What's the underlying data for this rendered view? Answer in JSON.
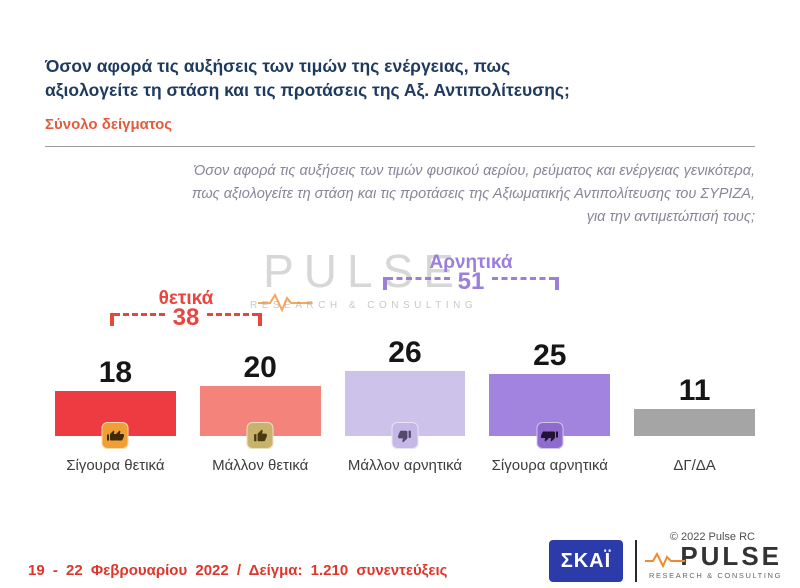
{
  "header": {
    "title_line1": "Όσον αφορά τις αυξήσεις των τιμών της ενέργειας, πως",
    "title_line2": "αξιολογείτε τη στάση και τις προτάσεις της Αξ. Αντιπολίτευσης;",
    "subtitle": "Σύνολο δείγματος"
  },
  "question": {
    "line1": "Όσον αφορά τις αυξήσεις των τιμών φυσικού αερίου, ρεύματος και ενέργειας γενικότερα,",
    "line2": "πως αξιολογείτε τη στάση και τις προτάσεις της Αξιωματικής Αντιπολίτευσης του ΣΥΡΙΖΑ,",
    "line3": "για την αντιμετώπισή τους;"
  },
  "chart_data": {
    "type": "bar",
    "categories": [
      "Σίγουρα θετικά",
      "Μάλλον θετικά",
      "Μάλλον αρνητικά",
      "Σίγουρα αρνητικά",
      "ΔΓ/ΔΑ"
    ],
    "values": [
      18,
      20,
      26,
      25,
      11
    ],
    "bar_colors": [
      "#ee3b41",
      "#f4837b",
      "#cdc2ea",
      "#a283de",
      "#a5a5a5"
    ],
    "icon_badge_colors": [
      "#ef9f33",
      "#c9b26b",
      "#c5b8e6",
      "#8d6cce"
    ],
    "icons": [
      "double-thumbs-up",
      "thumbs-up",
      "thumbs-down",
      "double-thumbs-down"
    ],
    "groups": [
      {
        "label": "θετικά",
        "value": 38,
        "color": "#e8453f"
      },
      {
        "label": "Αρνητικά",
        "value": 51,
        "color": "#9b7fd8"
      }
    ],
    "title": "Όσον αφορά τις αυξήσεις των τιμών της ενέργειας, πως αξιολογείτε τη στάση και τις προτάσεις της Αξ. Αντιπολίτευσης;",
    "xlabel": "",
    "ylabel": "",
    "ylim": [
      0,
      30
    ],
    "grid": false,
    "legend": false
  },
  "watermark": {
    "text": "PULSE",
    "tagline": "RESEARCH & CONSULTING"
  },
  "copyright": "© 2022 Pulse RC",
  "footer": {
    "note": "19 - 22 Φεβρουαρίου 2022 / Δείγμα: 1.210 συνεντεύξεις",
    "skai": "ΣΚΑΪ",
    "pulse": "PULSE",
    "pulse_tagline": "RESEARCH & CONSULTING"
  }
}
